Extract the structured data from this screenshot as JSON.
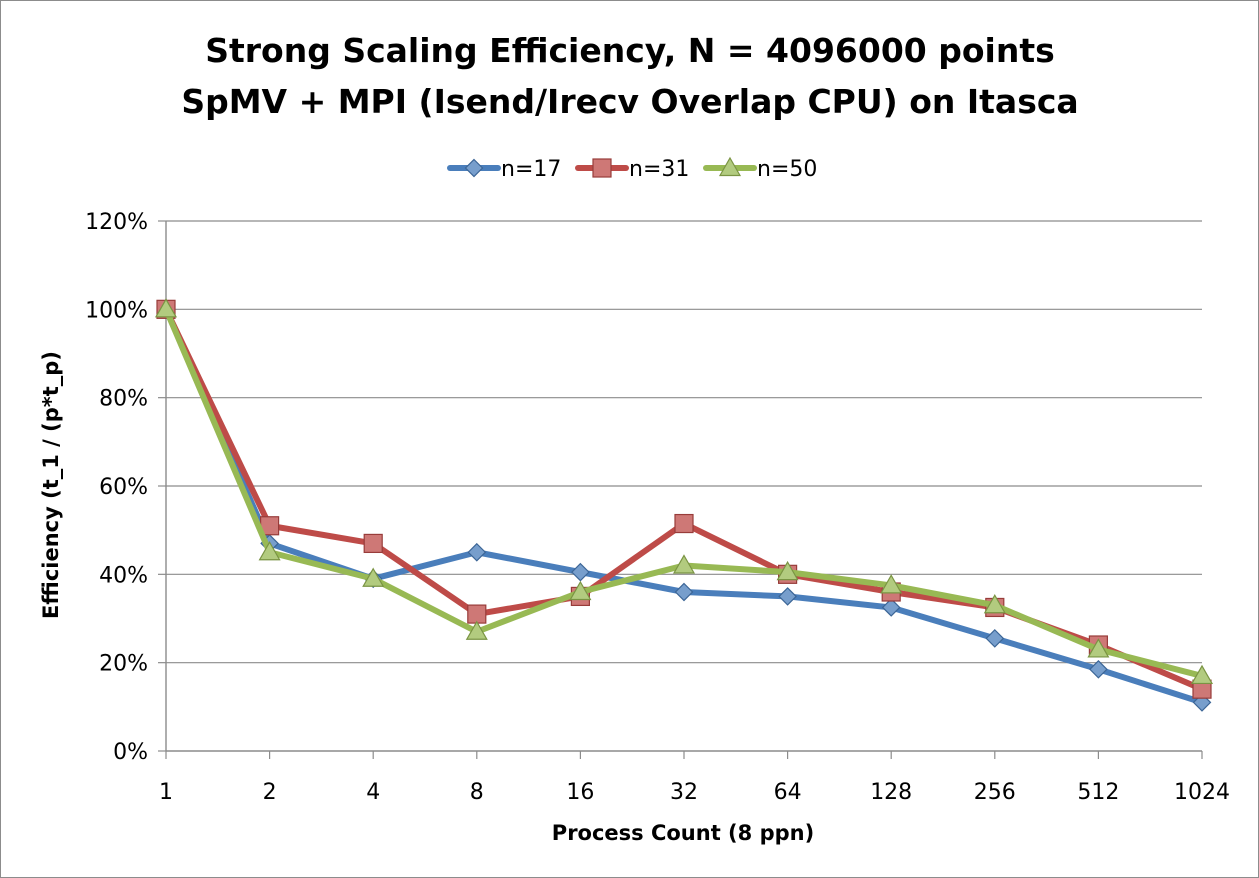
{
  "chart_data": {
    "type": "line",
    "title": "Strong Scaling Efficiency, N = 4096000 points",
    "subtitle": "SpMV + MPI (Isend/Irecv Overlap CPU) on Itasca",
    "xlabel": "Process Count (8 ppn)",
    "ylabel": "Efficiency (t_1 / (p*t_p)",
    "categories": [
      "1",
      "2",
      "4",
      "8",
      "16",
      "32",
      "64",
      "128",
      "256",
      "512",
      "1024"
    ],
    "y_ticks": [
      "0%",
      "20%",
      "40%",
      "60%",
      "80%",
      "100%",
      "120%"
    ],
    "ylim": [
      0,
      120
    ],
    "y_unit": "%",
    "grid": "horizontal",
    "legend_position": "top",
    "series": [
      {
        "name": "n=17",
        "color": "#4a7ebb",
        "marker": "diamond",
        "values": [
          100,
          47,
          39,
          45,
          40.5,
          36,
          35,
          32.5,
          25.5,
          18.5,
          11
        ]
      },
      {
        "name": "n=31",
        "color": "#be4b48",
        "marker": "square",
        "values": [
          100,
          51,
          47,
          31,
          35,
          51.5,
          40,
          36,
          32.5,
          24,
          14
        ]
      },
      {
        "name": "n=50",
        "color": "#98b954",
        "marker": "triangle",
        "values": [
          100,
          45,
          39,
          27,
          36,
          42,
          40.5,
          37.5,
          33,
          23,
          17
        ]
      }
    ]
  }
}
